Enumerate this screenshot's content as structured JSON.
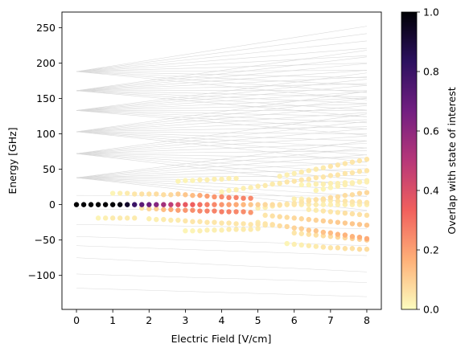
{
  "chart_data": {
    "type": "scatter",
    "xlabel": "Electric Field [V/cm]",
    "ylabel": "Energy [GHz]",
    "xlim": [
      -0.4,
      8.4
    ],
    "ylim": [
      -148,
      272
    ],
    "xticks": [
      "0",
      "1",
      "2",
      "3",
      "4",
      "5",
      "6",
      "7",
      "8"
    ],
    "yticks": [
      "250",
      "200",
      "150",
      "100",
      "50",
      "0",
      "−50",
      "−100"
    ],
    "colorbar": {
      "label": "Overlap with state of interest",
      "range": [
        0,
        1
      ],
      "ticks": [
        "0.0",
        "0.2",
        "0.4",
        "0.6",
        "0.8",
        "1.0"
      ],
      "colormap": "magma_r",
      "colors": [
        "#fcfdbf",
        "#feb078",
        "#f1605d",
        "#b73779",
        "#721f81",
        "#2c115f",
        "#000004"
      ]
    },
    "background_lines": {
      "color": "#d9d9d9",
      "manifolds": [
        {
          "center": 188,
          "upper_at_8": 252,
          "lower_at_8": 148
        },
        {
          "center": 161,
          "upper_at_8": 218,
          "lower_at_8": 124
        },
        {
          "center": 133,
          "upper_at_8": 186,
          "lower_at_8": 98
        },
        {
          "center": 103,
          "upper_at_8": 160,
          "lower_at_8": 60
        },
        {
          "center": 72,
          "upper_at_8": 128,
          "lower_at_8": 24
        },
        {
          "center": 38,
          "upper_at_8": 90,
          "lower_at_8": -8
        }
      ],
      "flat_lines": [
        {
          "start": 13,
          "end": 12
        },
        {
          "start": -6,
          "end": -9
        },
        {
          "start": -28,
          "end": -34
        },
        {
          "start": -45,
          "end": -58
        },
        {
          "start": -58,
          "end": -72
        },
        {
          "start": -75,
          "end": -95
        },
        {
          "start": -98,
          "end": -110
        },
        {
          "start": -118,
          "end": -130
        }
      ]
    },
    "series": [
      {
        "x": [
          0,
          0.2,
          0.4,
          0.6,
          0.8,
          1.0,
          1.2,
          1.4,
          1.6,
          1.8,
          2.0,
          2.2,
          2.4,
          2.6,
          2.8,
          3.0,
          3.2,
          3.4,
          3.6,
          3.8,
          4.0,
          4.2,
          4.4,
          4.6,
          4.8,
          5.0,
          5.2,
          5.4,
          5.6,
          5.8,
          6.0,
          6.2,
          6.4,
          6.6,
          6.8,
          7.0,
          7.2,
          7.4,
          7.6,
          7.8,
          8.0
        ],
        "y": [
          0,
          0,
          0,
          0,
          0,
          0,
          0,
          0,
          0,
          0,
          0,
          0,
          0,
          0,
          0,
          0,
          0,
          0,
          0,
          0,
          0,
          0,
          0,
          0,
          0,
          0,
          0,
          0,
          0,
          0,
          0,
          0,
          0,
          0,
          0,
          0,
          0,
          0,
          0,
          0,
          0
        ],
        "overlap": [
          1.0,
          1.0,
          1.0,
          1.0,
          1.0,
          1.0,
          0.98,
          0.93,
          0.8,
          0.72,
          0.68,
          0.62,
          0.55,
          0.48,
          0.4,
          0.36,
          0.34,
          0.3,
          0.27,
          0.25,
          0.22,
          0.2,
          0.18,
          0.15,
          0.12,
          0.1,
          0.08,
          0.07,
          0.06,
          0.05,
          0.05,
          0.04,
          0.04,
          0.04,
          0.03,
          0.03,
          0.03,
          0.03,
          0.03,
          0.03,
          0.03
        ]
      },
      {
        "x": [
          2.8,
          3.0,
          3.2,
          3.4,
          3.6,
          3.8,
          4.0,
          4.2,
          4.4,
          4.6,
          4.8
        ],
        "y": [
          15,
          14,
          13,
          13,
          12,
          11,
          11,
          10,
          10,
          9,
          9
        ],
        "overlap": [
          0.1,
          0.12,
          0.14,
          0.18,
          0.2,
          0.22,
          0.24,
          0.25,
          0.26,
          0.26,
          0.25
        ]
      },
      {
        "x": [
          1.8,
          2.0,
          2.2,
          2.4,
          2.6,
          2.8,
          3.0,
          3.2,
          3.4,
          3.6,
          3.8,
          4.0,
          4.2,
          4.4,
          4.6,
          4.8
        ],
        "y": [
          -5,
          -6,
          -6,
          -7,
          -7,
          -8,
          -8,
          -8,
          -9,
          -9,
          -9,
          -10,
          -10,
          -10,
          -10,
          -11
        ],
        "overlap": [
          0.05,
          0.08,
          0.1,
          0.14,
          0.18,
          0.2,
          0.22,
          0.24,
          0.25,
          0.26,
          0.26,
          0.27,
          0.26,
          0.25,
          0.24,
          0.22
        ]
      },
      {
        "x": [
          5.0,
          5.2,
          5.4,
          5.6,
          5.8,
          6.0,
          6.2,
          6.4,
          6.6,
          6.8,
          7.0,
          7.2,
          7.4,
          7.6,
          7.8,
          8.0
        ],
        "y": [
          -25,
          -27,
          -28,
          -30,
          -31,
          -33,
          -34,
          -36,
          -37,
          -39,
          -40,
          -42,
          -43,
          -45,
          -46,
          -48
        ],
        "overlap": [
          0.04,
          0.05,
          0.06,
          0.07,
          0.08,
          0.09,
          0.1,
          0.11,
          0.12,
          0.13,
          0.14,
          0.15,
          0.16,
          0.16,
          0.17,
          0.18
        ]
      },
      {
        "x": [
          5.8,
          6.0,
          6.2,
          6.4,
          6.6,
          6.8,
          7.0,
          7.2,
          7.4,
          7.6,
          7.8,
          8.0
        ],
        "y": [
          -55,
          -56,
          -57,
          -58,
          -59,
          -60,
          -61,
          -61,
          -62,
          -62,
          -63,
          -63
        ],
        "overlap": [
          0.02,
          0.03,
          0.03,
          0.04,
          0.04,
          0.05,
          0.05,
          0.06,
          0.06,
          0.06,
          0.07,
          0.07
        ]
      },
      {
        "x": [
          3.0,
          3.2,
          3.4,
          3.6,
          3.8,
          4.0,
          4.2,
          4.4,
          4.6,
          4.8,
          5.0
        ],
        "y": [
          -37,
          -37,
          -37,
          -36,
          -36,
          -36,
          -35,
          -35,
          -35,
          -35,
          -34
        ],
        "overlap": [
          0.02,
          0.02,
          0.03,
          0.03,
          0.03,
          0.03,
          0.04,
          0.04,
          0.04,
          0.04,
          0.04
        ]
      },
      {
        "x": [
          1.0,
          1.2,
          1.4,
          1.6,
          1.8,
          2.0,
          2.2,
          2.4,
          2.6
        ],
        "y": [
          16,
          16,
          16,
          15,
          15,
          15,
          15,
          14,
          14
        ],
        "overlap": [
          0.02,
          0.03,
          0.04,
          0.05,
          0.06,
          0.06,
          0.07,
          0.07,
          0.08
        ]
      },
      {
        "x": [
          0.6,
          0.8,
          1.0,
          1.2,
          1.4,
          1.6
        ],
        "y": [
          -19,
          -19,
          -19,
          -19,
          -19,
          -19
        ],
        "overlap": [
          0.02,
          0.03,
          0.04,
          0.04,
          0.04,
          0.04
        ]
      },
      {
        "x": [
          2.0,
          2.2,
          2.4,
          2.6,
          2.8,
          3.0,
          3.2,
          3.4,
          3.6,
          3.8,
          4.0,
          4.2,
          4.4,
          4.6,
          4.8,
          5.0,
          5.2,
          5.4
        ],
        "y": [
          -20,
          -21,
          -21,
          -22,
          -22,
          -23,
          -24,
          -24,
          -25,
          -25,
          -26,
          -26,
          -27,
          -27,
          -28,
          -28,
          -29,
          -29
        ],
        "overlap": [
          0.03,
          0.03,
          0.04,
          0.04,
          0.04,
          0.05,
          0.05,
          0.05,
          0.05,
          0.05,
          0.05,
          0.05,
          0.05,
          0.05,
          0.05,
          0.05,
          0.05,
          0.05
        ]
      },
      {
        "x": [
          2.8,
          3.0,
          3.2,
          3.4,
          3.6,
          3.8,
          4.0,
          4.2,
          4.4
        ],
        "y": [
          33,
          34,
          34,
          35,
          35,
          36,
          36,
          37,
          37
        ],
        "overlap": [
          0.02,
          0.02,
          0.02,
          0.03,
          0.03,
          0.03,
          0.03,
          0.03,
          0.03
        ]
      },
      {
        "x": [
          4.0,
          4.2,
          4.4,
          4.6,
          4.8,
          5.0,
          5.2,
          5.4,
          5.6,
          5.8,
          6.0,
          6.2,
          6.4,
          6.6,
          6.8,
          7.0,
          7.2,
          7.4,
          7.6,
          7.8,
          8.0
        ],
        "y": [
          18,
          20,
          21,
          23,
          24,
          26,
          27,
          29,
          30,
          32,
          33,
          35,
          36,
          38,
          39,
          41,
          42,
          44,
          45,
          47,
          48
        ],
        "overlap": [
          0.02,
          0.02,
          0.03,
          0.03,
          0.03,
          0.04,
          0.04,
          0.04,
          0.04,
          0.05,
          0.05,
          0.05,
          0.05,
          0.05,
          0.05,
          0.05,
          0.05,
          0.05,
          0.05,
          0.05,
          0.05
        ]
      },
      {
        "x": [
          5.0,
          5.2,
          5.4,
          5.6,
          5.8,
          6.0,
          6.2,
          6.4,
          6.6,
          6.8,
          7.0,
          7.2,
          7.4,
          7.6,
          7.8,
          8.0
        ],
        "y": [
          -5,
          -4,
          -2,
          -1,
          1,
          2,
          4,
          5,
          7,
          8,
          10,
          11,
          13,
          14,
          16,
          17
        ],
        "overlap": [
          0.03,
          0.03,
          0.04,
          0.04,
          0.05,
          0.05,
          0.05,
          0.06,
          0.06,
          0.06,
          0.07,
          0.07,
          0.07,
          0.07,
          0.08,
          0.08
        ]
      },
      {
        "x": [
          5.2,
          5.4,
          5.6,
          5.8,
          6.0,
          6.2,
          6.4,
          6.6,
          6.8,
          7.0,
          7.2,
          7.4,
          7.6,
          7.8,
          8.0
        ],
        "y": [
          -15,
          -16,
          -17,
          -18,
          -19,
          -20,
          -21,
          -22,
          -23,
          -24,
          -25,
          -26,
          -27,
          -28,
          -29
        ],
        "overlap": [
          0.05,
          0.06,
          0.07,
          0.07,
          0.08,
          0.08,
          0.09,
          0.09,
          0.1,
          0.1,
          0.11,
          0.11,
          0.12,
          0.12,
          0.12
        ]
      },
      {
        "x": [
          5.6,
          5.8,
          6.0,
          6.2,
          6.4,
          6.6,
          6.8,
          7.0,
          7.2,
          7.4,
          7.6,
          7.8,
          8.0
        ],
        "y": [
          40,
          42,
          44,
          46,
          48,
          50,
          52,
          54,
          56,
          58,
          60,
          62,
          64
        ],
        "overlap": [
          0.03,
          0.03,
          0.03,
          0.04,
          0.04,
          0.04,
          0.04,
          0.05,
          0.05,
          0.05,
          0.05,
          0.05,
          0.05
        ]
      },
      {
        "x": [
          6.0,
          6.2,
          6.4,
          6.6,
          6.8,
          7.0,
          7.2,
          7.4,
          7.6,
          7.8,
          8.0
        ],
        "y": [
          -40,
          -41,
          -42,
          -43,
          -44,
          -45,
          -46,
          -47,
          -48,
          -49,
          -50
        ],
        "overlap": [
          0.05,
          0.05,
          0.06,
          0.06,
          0.07,
          0.07,
          0.08,
          0.08,
          0.09,
          0.09,
          0.1
        ]
      },
      {
        "x": [
          6.2,
          6.4,
          6.6,
          6.8,
          7.0,
          7.2,
          7.4,
          7.6,
          7.8,
          8.0
        ],
        "y": [
          28,
          28,
          29,
          29,
          30,
          30,
          31,
          31,
          32,
          32
        ],
        "overlap": [
          0.02,
          0.02,
          0.03,
          0.03,
          0.03,
          0.03,
          0.03,
          0.03,
          0.03,
          0.03
        ]
      },
      {
        "x": [
          6.6,
          6.8,
          7.0,
          7.2,
          7.4,
          7.6,
          7.8,
          8.0
        ],
        "y": [
          20,
          22,
          24,
          26,
          28,
          30,
          32,
          34
        ],
        "overlap": [
          0.02,
          0.02,
          0.02,
          0.03,
          0.03,
          0.03,
          0.03,
          0.03
        ]
      },
      {
        "x": [
          6.0,
          6.2,
          6.4,
          6.6,
          6.8,
          7.0,
          7.2,
          7.4,
          7.6,
          7.8,
          8.0
        ],
        "y": [
          8,
          8,
          7,
          7,
          6,
          6,
          5,
          5,
          4,
          4,
          3
        ],
        "overlap": [
          0.03,
          0.03,
          0.04,
          0.04,
          0.04,
          0.04,
          0.05,
          0.05,
          0.05,
          0.05,
          0.05
        ]
      },
      {
        "x": [
          6.4,
          6.6,
          6.8,
          7.0,
          7.2,
          7.4,
          7.6,
          7.8,
          8.0
        ],
        "y": [
          -7,
          -8,
          -9,
          -10,
          -11,
          -12,
          -13,
          -14,
          -15
        ],
        "overlap": [
          0.04,
          0.04,
          0.05,
          0.05,
          0.05,
          0.06,
          0.06,
          0.06,
          0.06
        ]
      }
    ]
  }
}
